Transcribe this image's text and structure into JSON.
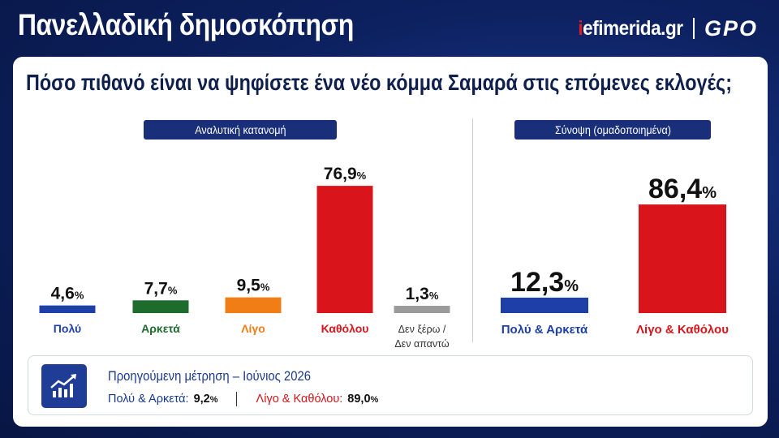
{
  "header": {
    "title": "Πανελλαδική δημοσκόπηση",
    "brand_prefix": "i",
    "brand_rest": "efimerida.gr",
    "brand_partner": "GPO"
  },
  "question": "Πόσο πιθανό είναι να ψηφίσετε ένα νέο κόμμα Σαμαρά στις επόμενες εκλογές;",
  "panels": {
    "detailed_title": "Αναλυτική κατανομή",
    "summary_title": "Σύνοψη  (ομαδοποιημένα)"
  },
  "chart_data": [
    {
      "type": "bar",
      "title": "Αναλυτική κατανομή",
      "categories": [
        "Πολύ",
        "Αρκετά",
        "Λίγο",
        "Καθόλου",
        "Δεν ξέρω / Δεν απαντώ"
      ],
      "values": [
        4.6,
        7.7,
        9.5,
        76.9,
        1.3
      ],
      "value_labels": [
        "4,6",
        "7,7",
        "9,5",
        "76,9",
        "1,3"
      ],
      "unit": "%",
      "colors": [
        "#1f3fa8",
        "#1e6b2e",
        "#f07d16",
        "#d9151b",
        "#9a9a9a"
      ],
      "label_colors": [
        "#1f3fa8",
        "#1e6b2e",
        "#f07d16",
        "#d9151b",
        "#333333"
      ],
      "ylim": [
        0,
        80
      ]
    },
    {
      "type": "bar",
      "title": "Σύνοψη  (ομαδοποιημένα)",
      "categories": [
        "Πολύ & Αρκετά",
        "Λίγο & Καθόλου"
      ],
      "values": [
        12.3,
        86.4
      ],
      "value_labels": [
        "12,3",
        "86,4"
      ],
      "unit": "%",
      "colors": [
        "#1f3fa8",
        "#d9151b"
      ],
      "label_colors": [
        "#1f3fa8",
        "#d9151b"
      ],
      "ylim": [
        0,
        90
      ]
    }
  ],
  "previous": {
    "title": "Προηγούμενη μέτρηση – Ιούνιος 2026",
    "group1_label": "Πολύ & Αρκετά:",
    "group1_value": "9,2",
    "group2_label": "Λίγο & Καθόλου:",
    "group2_value": "89,0",
    "unit": "%",
    "icon": "trend-chart-icon",
    "accent": "#1f3d96"
  }
}
